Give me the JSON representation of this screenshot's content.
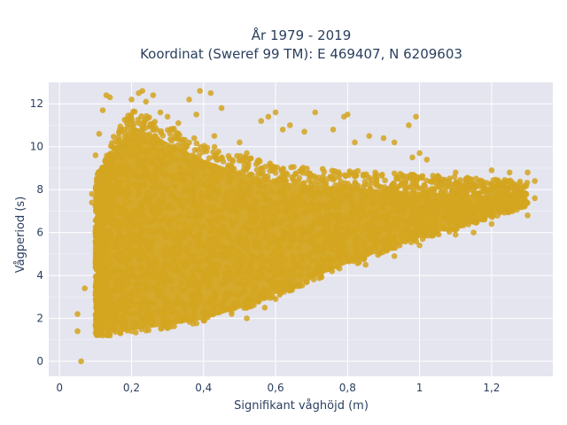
{
  "chart_data": {
    "type": "scatter",
    "title_line1": "År 1979 - 2019",
    "title_line2": "Koordinat (Sweref 99 TM): E 469407, N 6209603",
    "xlabel": "Signifikant våghöjd (m)",
    "ylabel": "Vågperiod (s)",
    "xlim": [
      -0.03,
      1.37
    ],
    "ylim": [
      -0.7,
      13.0
    ],
    "x_ticks": [
      0,
      0.2,
      0.4,
      0.6,
      0.8,
      1,
      1.2
    ],
    "x_tick_labels": [
      "0",
      "0,2",
      "0,4",
      "0,6",
      "0,8",
      "1",
      "1,2"
    ],
    "y_ticks": [
      0,
      2,
      4,
      6,
      8,
      10,
      12
    ],
    "y_tick_labels": [
      "0",
      "2",
      "4",
      "6",
      "8",
      "10",
      "12"
    ],
    "grid": true,
    "legend": "none",
    "background_color": "#e5e5ef",
    "marker_color": "#d4a520",
    "density_envelope": {
      "x": [
        0.1,
        0.15,
        0.2,
        0.3,
        0.4,
        0.5,
        0.6,
        0.7,
        0.8,
        0.9,
        1.0,
        1.1,
        1.2,
        1.3
      ],
      "y_lower": [
        1.2,
        1.2,
        1.3,
        1.5,
        1.8,
        2.3,
        3.0,
        3.7,
        4.4,
        5.0,
        5.6,
        6.1,
        6.7,
        7.2
      ],
      "y_upper": [
        8.5,
        10.5,
        11.8,
        11.0,
        10.2,
        9.6,
        9.2,
        9.0,
        8.9,
        8.8,
        8.7,
        8.6,
        8.5,
        8.4
      ]
    },
    "series": [
      {
        "values": [
          [
            0.06,
            0.0
          ],
          [
            0.05,
            1.4
          ],
          [
            0.05,
            2.2
          ],
          [
            0.07,
            3.4
          ],
          [
            0.09,
            7.4
          ],
          [
            0.09,
            7.8
          ],
          [
            0.1,
            9.6
          ],
          [
            0.11,
            10.6
          ],
          [
            0.12,
            11.7
          ],
          [
            0.13,
            12.4
          ],
          [
            0.14,
            12.3
          ],
          [
            0.2,
            12.2
          ],
          [
            0.22,
            12.5
          ],
          [
            0.23,
            12.6
          ],
          [
            0.24,
            12.1
          ],
          [
            0.26,
            12.4
          ],
          [
            0.28,
            11.6
          ],
          [
            0.3,
            11.4
          ],
          [
            0.33,
            11.1
          ],
          [
            0.36,
            12.2
          ],
          [
            0.38,
            11.5
          ],
          [
            0.39,
            12.6
          ],
          [
            0.42,
            12.5
          ],
          [
            0.45,
            11.8
          ],
          [
            0.43,
            10.5
          ],
          [
            0.5,
            10.2
          ],
          [
            0.52,
            9.7
          ],
          [
            0.56,
            11.2
          ],
          [
            0.58,
            11.4
          ],
          [
            0.6,
            11.6
          ],
          [
            0.62,
            10.8
          ],
          [
            0.64,
            11.0
          ],
          [
            0.68,
            10.7
          ],
          [
            0.71,
            11.6
          ],
          [
            0.76,
            10.8
          ],
          [
            0.79,
            11.4
          ],
          [
            0.8,
            11.5
          ],
          [
            0.82,
            10.2
          ],
          [
            0.86,
            10.5
          ],
          [
            0.9,
            10.4
          ],
          [
            0.93,
            10.2
          ],
          [
            0.97,
            11.0
          ],
          [
            0.98,
            9.5
          ],
          [
            0.99,
            11.4
          ],
          [
            1.0,
            9.7
          ],
          [
            1.02,
            9.4
          ],
          [
            1.05,
            8.6
          ],
          [
            1.1,
            8.8
          ],
          [
            1.15,
            8.2
          ],
          [
            1.2,
            8.9
          ],
          [
            1.22,
            8.3
          ],
          [
            1.25,
            8.8
          ],
          [
            1.28,
            7.8
          ],
          [
            1.3,
            8.8
          ],
          [
            1.32,
            8.4
          ],
          [
            1.32,
            7.6
          ],
          [
            1.3,
            6.8
          ],
          [
            1.2,
            6.4
          ],
          [
            1.15,
            6.0
          ],
          [
            1.1,
            5.9
          ],
          [
            1.0,
            5.4
          ],
          [
            0.93,
            4.9
          ],
          [
            0.85,
            4.5
          ],
          [
            0.6,
            2.9
          ],
          [
            0.57,
            2.5
          ],
          [
            0.52,
            2.0
          ],
          [
            0.4,
            1.9
          ],
          [
            0.3,
            1.6
          ],
          [
            0.2,
            1.4
          ],
          [
            0.14,
            1.2
          ]
        ]
      }
    ]
  }
}
